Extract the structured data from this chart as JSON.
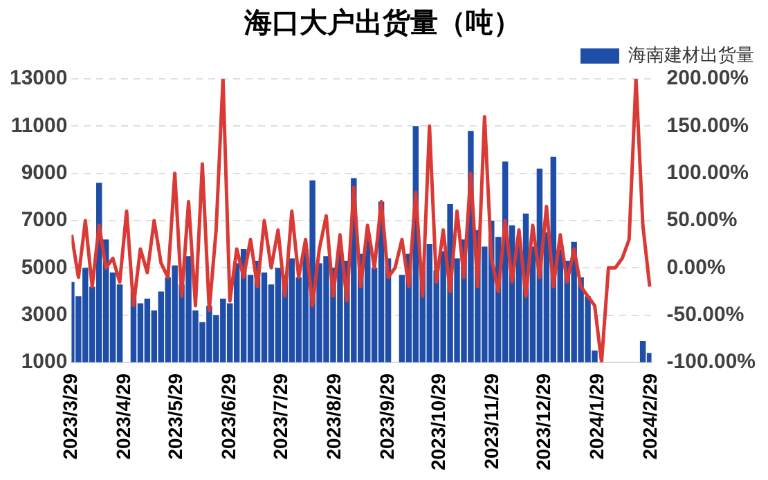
{
  "chart_data": {
    "type": "bar",
    "title": "海口大户出货量（吨）",
    "x": [
      "2023-03-29",
      "2023-04-02",
      "2023-04-06",
      "2023-04-10",
      "2023-04-14",
      "2023-04-18",
      "2023-04-22",
      "2023-04-26",
      "2023-04-30",
      "2023-05-04",
      "2023-05-08",
      "2023-05-12",
      "2023-05-16",
      "2023-05-20",
      "2023-05-24",
      "2023-05-28",
      "2023-06-01",
      "2023-06-05",
      "2023-06-09",
      "2023-06-13",
      "2023-06-17",
      "2023-06-21",
      "2023-06-25",
      "2023-06-29",
      "2023-07-03",
      "2023-07-07",
      "2023-07-11",
      "2023-07-15",
      "2023-07-19",
      "2023-07-23",
      "2023-07-27",
      "2023-07-31",
      "2023-08-04",
      "2023-08-08",
      "2023-08-12",
      "2023-08-16",
      "2023-08-20",
      "2023-08-24",
      "2023-08-28",
      "2023-09-01",
      "2023-09-05",
      "2023-09-09",
      "2023-09-13",
      "2023-09-17",
      "2023-09-21",
      "2023-09-25",
      "2023-09-29",
      "2023-10-03",
      "2023-10-07",
      "2023-10-11",
      "2023-10-15",
      "2023-10-19",
      "2023-10-23",
      "2023-10-27",
      "2023-10-31",
      "2023-11-04",
      "2023-11-08",
      "2023-11-12",
      "2023-11-16",
      "2023-11-20",
      "2023-11-24",
      "2023-11-28",
      "2023-12-02",
      "2023-12-06",
      "2023-12-10",
      "2023-12-14",
      "2023-12-18",
      "2023-12-22",
      "2023-12-26",
      "2023-12-30",
      "2024-01-03",
      "2024-01-07",
      "2024-01-11",
      "2024-01-15",
      "2024-01-19",
      "2024-01-23",
      "2024-01-27",
      "2024-01-31",
      "2024-02-04",
      "2024-02-08",
      "2024-02-12",
      "2024-02-16",
      "2024-02-20",
      "2024-02-24",
      "2024-02-28"
    ],
    "series": [
      {
        "name": "海南建材出货量",
        "color": "#1f4ea8",
        "values": [
          4400,
          3800,
          5000,
          4200,
          8600,
          6200,
          4800,
          4300,
          null,
          4000,
          3500,
          3700,
          3200,
          4000,
          4600,
          5100,
          4300,
          5500,
          3200,
          2700,
          3400,
          3000,
          3700,
          3500,
          5200,
          5800,
          4700,
          5300,
          4800,
          4300,
          5000,
          4700,
          5400,
          4600,
          5800,
          8700,
          5200,
          5500,
          5000,
          5800,
          5300,
          8800,
          5600,
          6300,
          5000,
          7800,
          5400,
          null,
          4700,
          5600,
          11000,
          5200,
          6000,
          4900,
          5700,
          7700,
          5400,
          6200,
          10800,
          6600,
          5900,
          7000,
          6300,
          9500,
          6800,
          6100,
          7300,
          5900,
          9200,
          6500,
          9700,
          5800,
          5300,
          6100,
          4600,
          3800,
          1500,
          null,
          null,
          null,
          null,
          null,
          null,
          1900,
          1400
        ]
      },
      {
        "type": "line",
        "axis": "y2",
        "color": "#d93a35",
        "values": [
          35,
          -10,
          50,
          -20,
          45,
          0,
          10,
          -15,
          60,
          -40,
          20,
          -5,
          50,
          5,
          -10,
          100,
          -30,
          70,
          -40,
          110,
          -45,
          40,
          200,
          -35,
          20,
          -10,
          30,
          -20,
          50,
          0,
          40,
          -30,
          60,
          -10,
          30,
          -40,
          20,
          55,
          -30,
          35,
          -35,
          85,
          -20,
          45,
          0,
          70,
          -10,
          0,
          30,
          -20,
          80,
          -30,
          150,
          -15,
          40,
          -25,
          60,
          -10,
          100,
          -20,
          160,
          10,
          -25,
          50,
          -15,
          40,
          -30,
          45,
          -10,
          65,
          -20,
          35,
          -15,
          20,
          -20,
          -30,
          -40,
          -100,
          0,
          0,
          10,
          30,
          200,
          45,
          -20
        ]
      }
    ],
    "xlim": [
      "2023-03-29",
      "2024-02-29"
    ],
    "xticks": [
      {
        "value": "2023-03-29",
        "label": "2023/3/29"
      },
      {
        "value": "2023-04-29",
        "label": "2023/4/29"
      },
      {
        "value": "2023-05-29",
        "label": "2023/5/29"
      },
      {
        "value": "2023-06-29",
        "label": "2023/6/29"
      },
      {
        "value": "2023-07-29",
        "label": "2023/7/29"
      },
      {
        "value": "2023-08-29",
        "label": "2023/8/29"
      },
      {
        "value": "2023-09-29",
        "label": "2023/9/29"
      },
      {
        "value": "2023-10-29",
        "label": "2023/10/29"
      },
      {
        "value": "2023-11-29",
        "label": "2023/11/29"
      },
      {
        "value": "2023-12-29",
        "label": "2023/12/29"
      },
      {
        "value": "2024-01-29",
        "label": "2024/1/29"
      },
      {
        "value": "2024-02-29",
        "label": "2024/2/29"
      }
    ],
    "ylim": [
      1000,
      13000
    ],
    "yticks": [
      1000,
      3000,
      5000,
      7000,
      9000,
      11000,
      13000
    ],
    "y2lim": [
      -100,
      200
    ],
    "y2ticks": [
      {
        "value": -100,
        "label": "-100.00%"
      },
      {
        "value": -50,
        "label": "-50.00%"
      },
      {
        "value": 0,
        "label": "0.00%"
      },
      {
        "value": 50,
        "label": "50.00%"
      },
      {
        "value": 100,
        "label": "100.00%"
      },
      {
        "value": 150,
        "label": "150.00%"
      },
      {
        "value": 200,
        "label": "200.00%"
      }
    ],
    "grid": "y",
    "legend": "top right",
    "marker": "none",
    "line_style": "solid"
  }
}
